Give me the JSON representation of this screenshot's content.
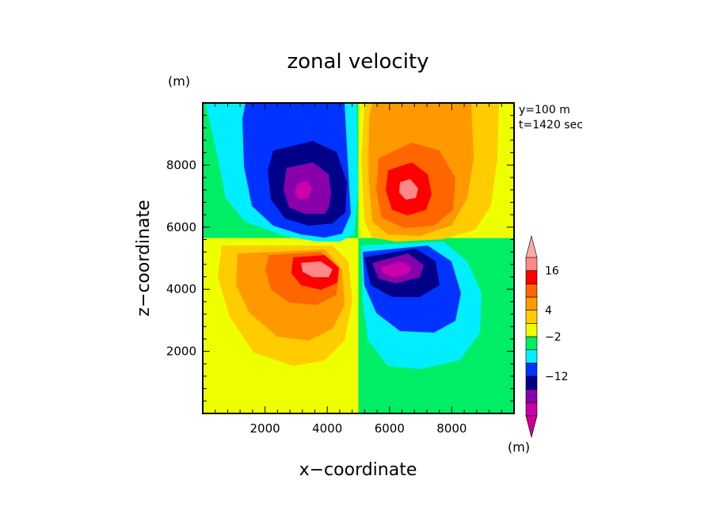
{
  "chart_data": {
    "type": "heatmap",
    "title": "zonal velocity",
    "xlabel": "x−coordinate",
    "ylabel": "z−coordinate",
    "x_unit": "(m)",
    "y_unit": "(m)",
    "colorbar_unit": "(m)",
    "annotations": [
      "y=100 m",
      "t=1420 sec"
    ],
    "xlim": [
      0,
      10000
    ],
    "ylim": [
      0,
      10000
    ],
    "x_ticks": [
      2000,
      4000,
      6000,
      8000
    ],
    "y_ticks": [
      2000,
      4000,
      6000,
      8000
    ],
    "x_tick_labels": [
      "2000",
      "4000",
      "6000",
      "8000"
    ],
    "y_tick_labels": [
      "2000",
      "4000",
      "6000",
      "8000"
    ],
    "colorbar": {
      "colors": [
        "#cc00aa",
        "#8800aa",
        "#000088",
        "#0033ff",
        "#00eeff",
        "#00ee66",
        "#eeff00",
        "#ffcc00",
        "#ff9900",
        "#ff6600",
        "#ff0000",
        "#ff8888"
      ],
      "extend": "both",
      "low_end_color": "#cc0099",
      "high_end_color": "#ffaaaa",
      "labels": [
        {
          "value": 16,
          "text": "16"
        },
        {
          "value": 4,
          "text": "4"
        },
        {
          "value": -2,
          "text": "−2"
        },
        {
          "value": -12,
          "text": "−12"
        }
      ],
      "label_band_index": {
        "16": 10,
        "4": 7,
        "-2": 5,
        "-12": 2
      }
    },
    "field": {
      "description_levels": "filled contours of zonal velocity, antisymmetric about x=5000",
      "background": [
        {
          "region": "upper-left",
          "value": 0,
          "color": "#00ee66"
        },
        {
          "region": "upper-right",
          "value": 2,
          "color": "#eeff00"
        },
        {
          "region": "lower-left",
          "value": 2,
          "color": "#eeff00"
        },
        {
          "region": "lower-right",
          "value": 0,
          "color": "#00ee66"
        }
      ],
      "extrema": [
        {
          "x": 3500,
          "z": 7300,
          "sign": "negative",
          "peak_level": -20
        },
        {
          "x": 6600,
          "z": 7300,
          "sign": "positive",
          "peak_level": 20
        },
        {
          "x": 3700,
          "z": 4700,
          "sign": "positive",
          "peak_level": 20
        },
        {
          "x": 6300,
          "z": 4600,
          "sign": "negative",
          "peak_level": -20
        }
      ]
    }
  }
}
